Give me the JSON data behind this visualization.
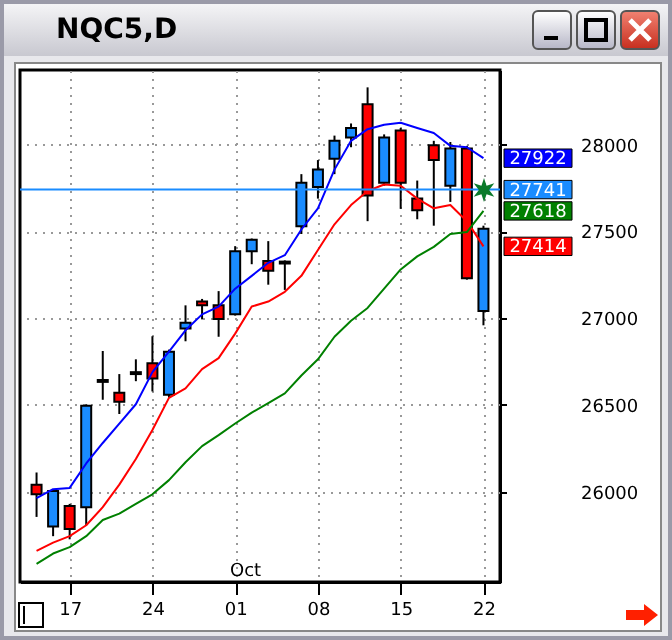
{
  "chart_data": {
    "type": "candlestick",
    "title": "NQC5,D",
    "categories": [
      null,
      null,
      "17",
      null,
      null,
      null,
      null,
      "24",
      null,
      null,
      null,
      null,
      "01",
      null,
      null,
      null,
      null,
      "08",
      null,
      null,
      null,
      null,
      "15",
      null,
      null,
      null,
      null,
      "22"
    ],
    "ohlc": [
      [
        26041,
        26111,
        25855,
        25985
      ],
      [
        25800,
        26015,
        25744,
        26004
      ],
      [
        25918,
        25930,
        25726,
        25785
      ],
      [
        25911,
        26504,
        25807,
        26496
      ],
      [
        26633,
        26811,
        26530,
        26644
      ],
      [
        26570,
        26678,
        26448,
        26519
      ],
      [
        26678,
        26763,
        26637,
        26689
      ],
      [
        26741,
        26896,
        26578,
        26652
      ],
      [
        26559,
        26819,
        26541,
        26807
      ],
      [
        26941,
        27074,
        26867,
        26974
      ],
      [
        27096,
        27111,
        26993,
        27074
      ],
      [
        27074,
        27156,
        26893,
        26996
      ],
      [
        27022,
        27415,
        27015,
        27385
      ],
      [
        27385,
        27459,
        27311,
        27452
      ],
      [
        27330,
        27444,
        27193,
        27274
      ],
      [
        27326,
        27333,
        27163,
        27315
      ],
      [
        27530,
        27830,
        27485,
        27781
      ],
      [
        27756,
        27911,
        27689,
        27856
      ],
      [
        27919,
        28052,
        27830,
        28022
      ],
      [
        28041,
        28122,
        27985,
        28096
      ],
      [
        28233,
        28330,
        27559,
        27707
      ],
      [
        27781,
        28059,
        27763,
        28041
      ],
      [
        28082,
        28096,
        27630,
        27781
      ],
      [
        27689,
        27793,
        27570,
        27622
      ],
      [
        27996,
        28022,
        27533,
        27911
      ],
      [
        27763,
        28015,
        27670,
        27978
      ],
      [
        27978,
        27993,
        27222,
        27230
      ],
      [
        27041,
        27533,
        26959,
        27515
      ]
    ],
    "colors": [
      "#ff0000",
      "#1a8cff",
      "#ff0000",
      "#1a8cff",
      "#1a8cff",
      "#ff0000",
      "#1a8cff",
      "#ff0000",
      "#1a8cff",
      "#1a8cff",
      "#ff0000",
      "#ff0000",
      "#1a8cff",
      "#1a8cff",
      "#ff0000",
      "#ff0000",
      "#1a8cff",
      "#1a8cff",
      "#1a8cff",
      "#1a8cff",
      "#ff0000",
      "#1a8cff",
      "#ff0000",
      "#ff0000",
      "#ff0000",
      "#1a8cff",
      "#ff0000",
      "#1a8cff"
    ],
    "series": [
      {
        "type": "line",
        "color": "#0000ff",
        "values": [
          25963,
          26015,
          26022,
          26163,
          26281,
          26393,
          26504,
          26689,
          26807,
          26930,
          27022,
          27067,
          27170,
          27244,
          27319,
          27363,
          27511,
          27633,
          27856,
          28022,
          28089,
          28115,
          28126,
          28096,
          28067,
          27993,
          27985,
          27922
        ],
        "value_labels": [
          null,
          null,
          null,
          null,
          null,
          null,
          null,
          null,
          null,
          null,
          null,
          null,
          null,
          null,
          null,
          null,
          null,
          null,
          null,
          null,
          null,
          null,
          null,
          null,
          null,
          null,
          null,
          "27922"
        ]
      },
      {
        "type": "line",
        "color": "#ff0000",
        "values": [
          25659,
          25707,
          25744,
          25807,
          25911,
          26041,
          26189,
          26356,
          26541,
          26596,
          26707,
          26770,
          26911,
          27067,
          27096,
          27152,
          27244,
          27393,
          27541,
          27652,
          27733,
          27770,
          27763,
          27689,
          27633,
          27652,
          27559,
          27414
        ],
        "value_labels": [
          null,
          null,
          null,
          null,
          null,
          null,
          null,
          null,
          null,
          null,
          null,
          null,
          null,
          null,
          null,
          null,
          null,
          null,
          null,
          null,
          null,
          null,
          null,
          null,
          null,
          null,
          null,
          "27414"
        ]
      },
      {
        "type": "line",
        "color": "#008000",
        "values": [
          25585,
          25644,
          25681,
          25744,
          25837,
          25874,
          25930,
          25985,
          26067,
          26170,
          26263,
          26326,
          26393,
          26456,
          26511,
          26567,
          26670,
          26763,
          26893,
          26985,
          27059,
          27170,
          27281,
          27356,
          27411,
          27485,
          27496,
          27618
        ],
        "value_labels": [
          null,
          null,
          null,
          null,
          null,
          null,
          null,
          null,
          null,
          null,
          null,
          null,
          null,
          null,
          null,
          null,
          null,
          null,
          null,
          null,
          null,
          null,
          null,
          null,
          null,
          null,
          null,
          "27618"
        ]
      }
    ],
    "ref_lines": [
      {
        "axis": "y",
        "value": 27741,
        "label": "27741",
        "color": "#1a8cff"
      }
    ],
    "annotations": [
      "Oct"
    ],
    "ylim": [
      25480,
      28430
    ],
    "yticks": [
      26000,
      26500,
      27000,
      27500,
      28000
    ],
    "grid": true
  }
}
